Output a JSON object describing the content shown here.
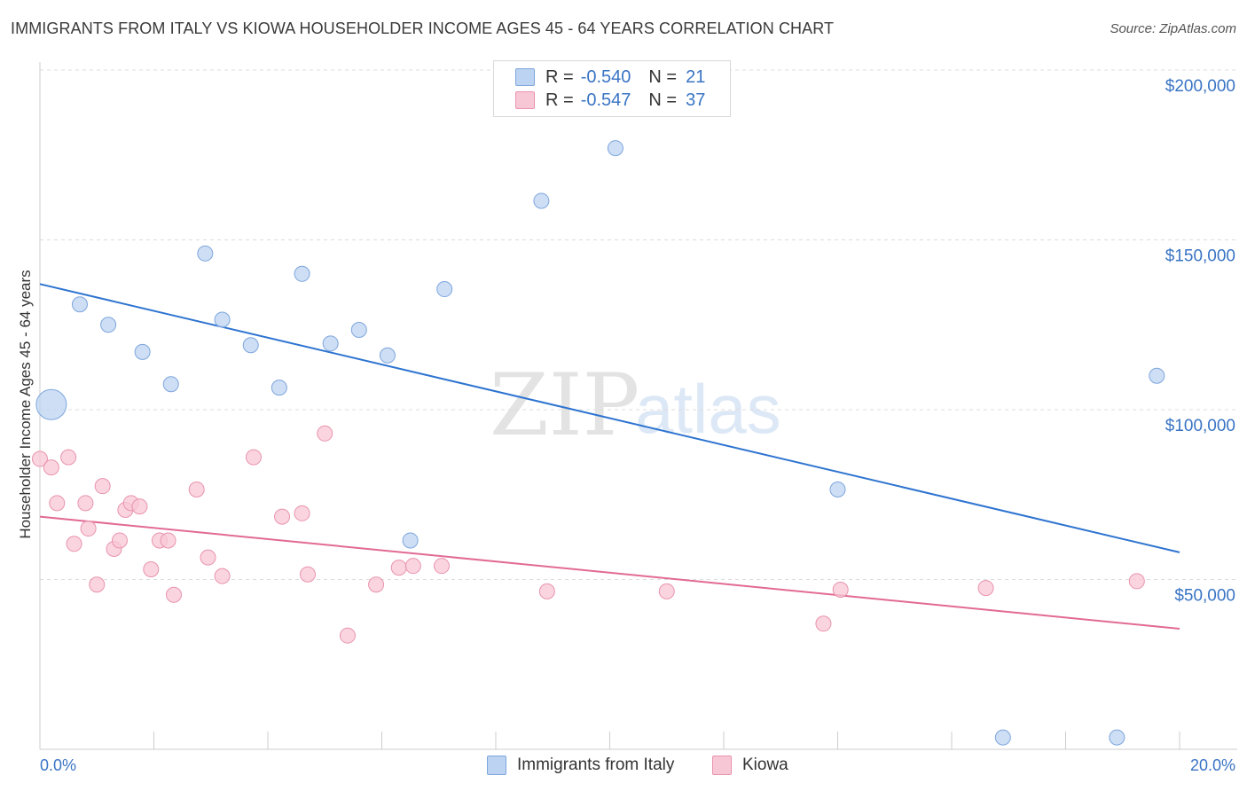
{
  "title": "IMMIGRANTS FROM ITALY VS KIOWA HOUSEHOLDER INCOME AGES 45 - 64 YEARS CORRELATION CHART",
  "source": "Source: ZipAtlas.com",
  "watermark": {
    "zip": "ZIP",
    "atlas": "atlas"
  },
  "legend": {
    "rows": [
      {
        "r_label": "R =",
        "r_value": "-0.540",
        "n_label": "N =",
        "n_value": "21"
      },
      {
        "r_label": "R =",
        "r_value": "-0.547",
        "n_label": "N =",
        "n_value": "37"
      }
    ]
  },
  "colors": {
    "italy_fill": "#bcd3f2",
    "italy_stroke": "#7ea6dd",
    "italy_line": "#2e74d0",
    "kiowa_fill": "#f8c7d5",
    "kiowa_stroke": "#e993ad",
    "kiowa_line": "#e26a94",
    "grid": "#dddddd",
    "tick_text": "#3a74c4"
  },
  "chart_data": {
    "type": "scatter",
    "title": "IMMIGRANTS FROM ITALY VS KIOWA HOUSEHOLDER INCOME AGES 45 - 64 YEARS CORRELATION CHART",
    "xlabel": "",
    "ylabel": "Householder Income Ages 45 - 64 years",
    "xlim": [
      0,
      20
    ],
    "ylim": [
      0,
      200000
    ],
    "x_tick_labels": [
      "0.0%",
      "20.0%"
    ],
    "y_ticks": [
      50000,
      100000,
      150000,
      200000
    ],
    "y_tick_labels": [
      "$50,000",
      "$100,000",
      "$150,000",
      "$200,000"
    ],
    "grid": true,
    "legend_position": "bottom",
    "series": [
      {
        "name": "Immigrants from Italy",
        "r": -0.54,
        "n": 21,
        "trend": {
          "x": [
            0,
            20
          ],
          "y": [
            137000,
            58000
          ]
        },
        "points": [
          {
            "x": 0.2,
            "y": 101500,
            "large": true
          },
          {
            "x": 0.7,
            "y": 131000
          },
          {
            "x": 1.2,
            "y": 125000
          },
          {
            "x": 1.8,
            "y": 117000
          },
          {
            "x": 2.3,
            "y": 107500
          },
          {
            "x": 2.9,
            "y": 146000
          },
          {
            "x": 3.2,
            "y": 126500
          },
          {
            "x": 3.7,
            "y": 119000
          },
          {
            "x": 4.2,
            "y": 106500
          },
          {
            "x": 4.6,
            "y": 140000
          },
          {
            "x": 5.1,
            "y": 119500
          },
          {
            "x": 5.6,
            "y": 123500
          },
          {
            "x": 6.1,
            "y": 116000
          },
          {
            "x": 6.5,
            "y": 61500
          },
          {
            "x": 7.1,
            "y": 135500
          },
          {
            "x": 8.8,
            "y": 161500
          },
          {
            "x": 10.1,
            "y": 177000
          },
          {
            "x": 14.0,
            "y": 76500
          },
          {
            "x": 16.9,
            "y": 3500
          },
          {
            "x": 18.9,
            "y": 3500
          },
          {
            "x": 19.6,
            "y": 110000
          }
        ]
      },
      {
        "name": "Kiowa",
        "r": -0.547,
        "n": 37,
        "trend": {
          "x": [
            0,
            20
          ],
          "y": [
            68500,
            35500
          ]
        },
        "points": [
          {
            "x": 0.0,
            "y": 85500
          },
          {
            "x": 0.2,
            "y": 83000
          },
          {
            "x": 0.3,
            "y": 72500
          },
          {
            "x": 0.5,
            "y": 86000
          },
          {
            "x": 0.6,
            "y": 60500
          },
          {
            "x": 0.8,
            "y": 72500
          },
          {
            "x": 0.85,
            "y": 65000
          },
          {
            "x": 1.0,
            "y": 48500
          },
          {
            "x": 1.1,
            "y": 77500
          },
          {
            "x": 1.3,
            "y": 59000
          },
          {
            "x": 1.4,
            "y": 61500
          },
          {
            "x": 1.5,
            "y": 70500
          },
          {
            "x": 1.6,
            "y": 72500
          },
          {
            "x": 1.75,
            "y": 71500
          },
          {
            "x": 1.95,
            "y": 53000
          },
          {
            "x": 2.1,
            "y": 61500
          },
          {
            "x": 2.25,
            "y": 61500
          },
          {
            "x": 2.35,
            "y": 45500
          },
          {
            "x": 2.75,
            "y": 76500
          },
          {
            "x": 2.95,
            "y": 56500
          },
          {
            "x": 3.2,
            "y": 51000
          },
          {
            "x": 3.75,
            "y": 86000
          },
          {
            "x": 4.25,
            "y": 68500
          },
          {
            "x": 4.6,
            "y": 69500
          },
          {
            "x": 4.7,
            "y": 51500
          },
          {
            "x": 5.0,
            "y": 93000
          },
          {
            "x": 5.4,
            "y": 33500
          },
          {
            "x": 5.9,
            "y": 48500
          },
          {
            "x": 6.3,
            "y": 53500
          },
          {
            "x": 6.55,
            "y": 54000
          },
          {
            "x": 7.05,
            "y": 54000
          },
          {
            "x": 8.9,
            "y": 46500
          },
          {
            "x": 11.0,
            "y": 46500
          },
          {
            "x": 13.75,
            "y": 37000
          },
          {
            "x": 14.05,
            "y": 47000
          },
          {
            "x": 16.6,
            "y": 47500
          },
          {
            "x": 19.25,
            "y": 49500
          }
        ]
      }
    ]
  }
}
